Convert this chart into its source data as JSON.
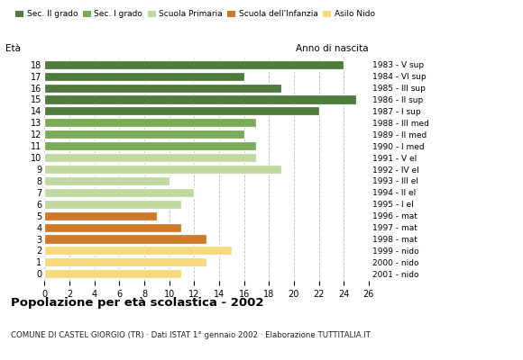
{
  "ages": [
    18,
    17,
    16,
    15,
    14,
    13,
    12,
    11,
    10,
    9,
    8,
    7,
    6,
    5,
    4,
    3,
    2,
    1,
    0
  ],
  "values": [
    24,
    16,
    19,
    25,
    22,
    17,
    16,
    17,
    17,
    19,
    10,
    12,
    11,
    9,
    11,
    13,
    15,
    13,
    11
  ],
  "anno_nascita": [
    "1983 - V sup",
    "1984 - VI sup",
    "1985 - III sup",
    "1986 - II sup",
    "1987 - I sup",
    "1988 - III med",
    "1989 - II med",
    "1990 - I med",
    "1991 - V el",
    "1992 - IV el",
    "1993 - III el",
    "1994 - II el",
    "1995 - I el",
    "1996 - mat",
    "1997 - mat",
    "1998 - mat",
    "1999 - nido",
    "2000 - nido",
    "2001 - nido"
  ],
  "colors": [
    "#4d7c3c",
    "#4d7c3c",
    "#4d7c3c",
    "#4d7c3c",
    "#4d7c3c",
    "#7aab56",
    "#7aab56",
    "#7aab56",
    "#c0d9a0",
    "#c0d9a0",
    "#c0d9a0",
    "#c0d9a0",
    "#c0d9a0",
    "#cc7a2a",
    "#cc7a2a",
    "#cc7a2a",
    "#f5d97a",
    "#f5d97a",
    "#f5d97a"
  ],
  "legend_labels": [
    "Sec. II grado",
    "Sec. I grado",
    "Scuola Primaria",
    "Scuola dell'Infanzia",
    "Asilo Nido"
  ],
  "legend_colors": [
    "#4d7c3c",
    "#7aab56",
    "#c0d9a0",
    "#cc7a2a",
    "#f5d97a"
  ],
  "title": "Popolazione per età scolastica - 2002",
  "subtitle": "COMUNE DI CASTEL GIORGIO (TR) · Dati ISTAT 1° gennaio 2002 · Elaborazione TUTTITALIA.IT",
  "label_left": "Età",
  "label_right": "Anno di nascita",
  "xlim": [
    0,
    26
  ],
  "xticks": [
    0,
    2,
    4,
    6,
    8,
    10,
    12,
    14,
    16,
    18,
    20,
    22,
    24,
    26
  ],
  "background_color": "#ffffff",
  "grid_color": "#bbbbbb"
}
